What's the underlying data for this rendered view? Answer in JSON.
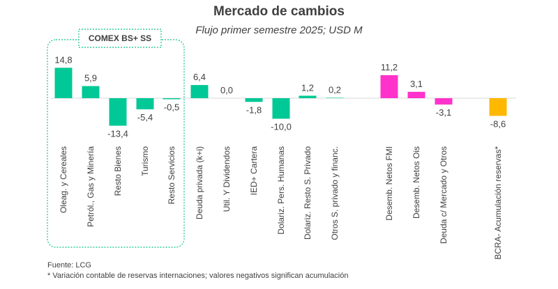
{
  "chart_data": {
    "type": "bar",
    "title": "Mercado de cambios",
    "subtitle": "Flujo primer semestre 2025; USD M",
    "group_label": "COMEX BS+ SS",
    "xlabel": "",
    "ylabel": "",
    "categories": [
      "Oleag. y Cereales",
      "Petról., Gas y Minería",
      "Resto Bienes",
      "Turismo",
      "Resto Servicios",
      "Deuda privada (k+i)",
      "Util. Y Dividendos",
      "IED+ Cartera",
      "Dolariz. Pers. Humanas",
      "Dolariz. Resto S. Privado",
      "Otros S. privado y financ.",
      "Desemb. Netos FMI",
      "Desemb. Netos Ois",
      "Deuda c/ Mercado y Otros",
      "BCRA- Acumulación reservas*"
    ],
    "values": [
      14.8,
      5.9,
      -13.4,
      -5.4,
      -0.5,
      6.4,
      0.0,
      -1.8,
      -10.0,
      1.2,
      0.2,
      11.2,
      3.1,
      -3.1,
      -8.6
    ],
    "value_labels": [
      "14,8",
      "5,9",
      "-13,4",
      "-5,4",
      "-0,5",
      "6,4",
      "0,0",
      "-1,8",
      "-10,0",
      "1,2",
      "0,2",
      "11,2",
      "3,1",
      "-3,1",
      "-8,6"
    ],
    "bar_colors": [
      "#00C896",
      "#00C896",
      "#00C896",
      "#00C896",
      "#00C896",
      "#00C896",
      "#00C896",
      "#00C896",
      "#00C896",
      "#00C896",
      "#00C896",
      "#FF33CC",
      "#FF33CC",
      "#FF33CC",
      "#FFB800"
    ],
    "grid": false,
    "legend": "none"
  },
  "notes": {
    "source": "Fuente: LCG",
    "footnote": "* Variación contable de reservas internaciones; valores negativos significan acumulación"
  }
}
